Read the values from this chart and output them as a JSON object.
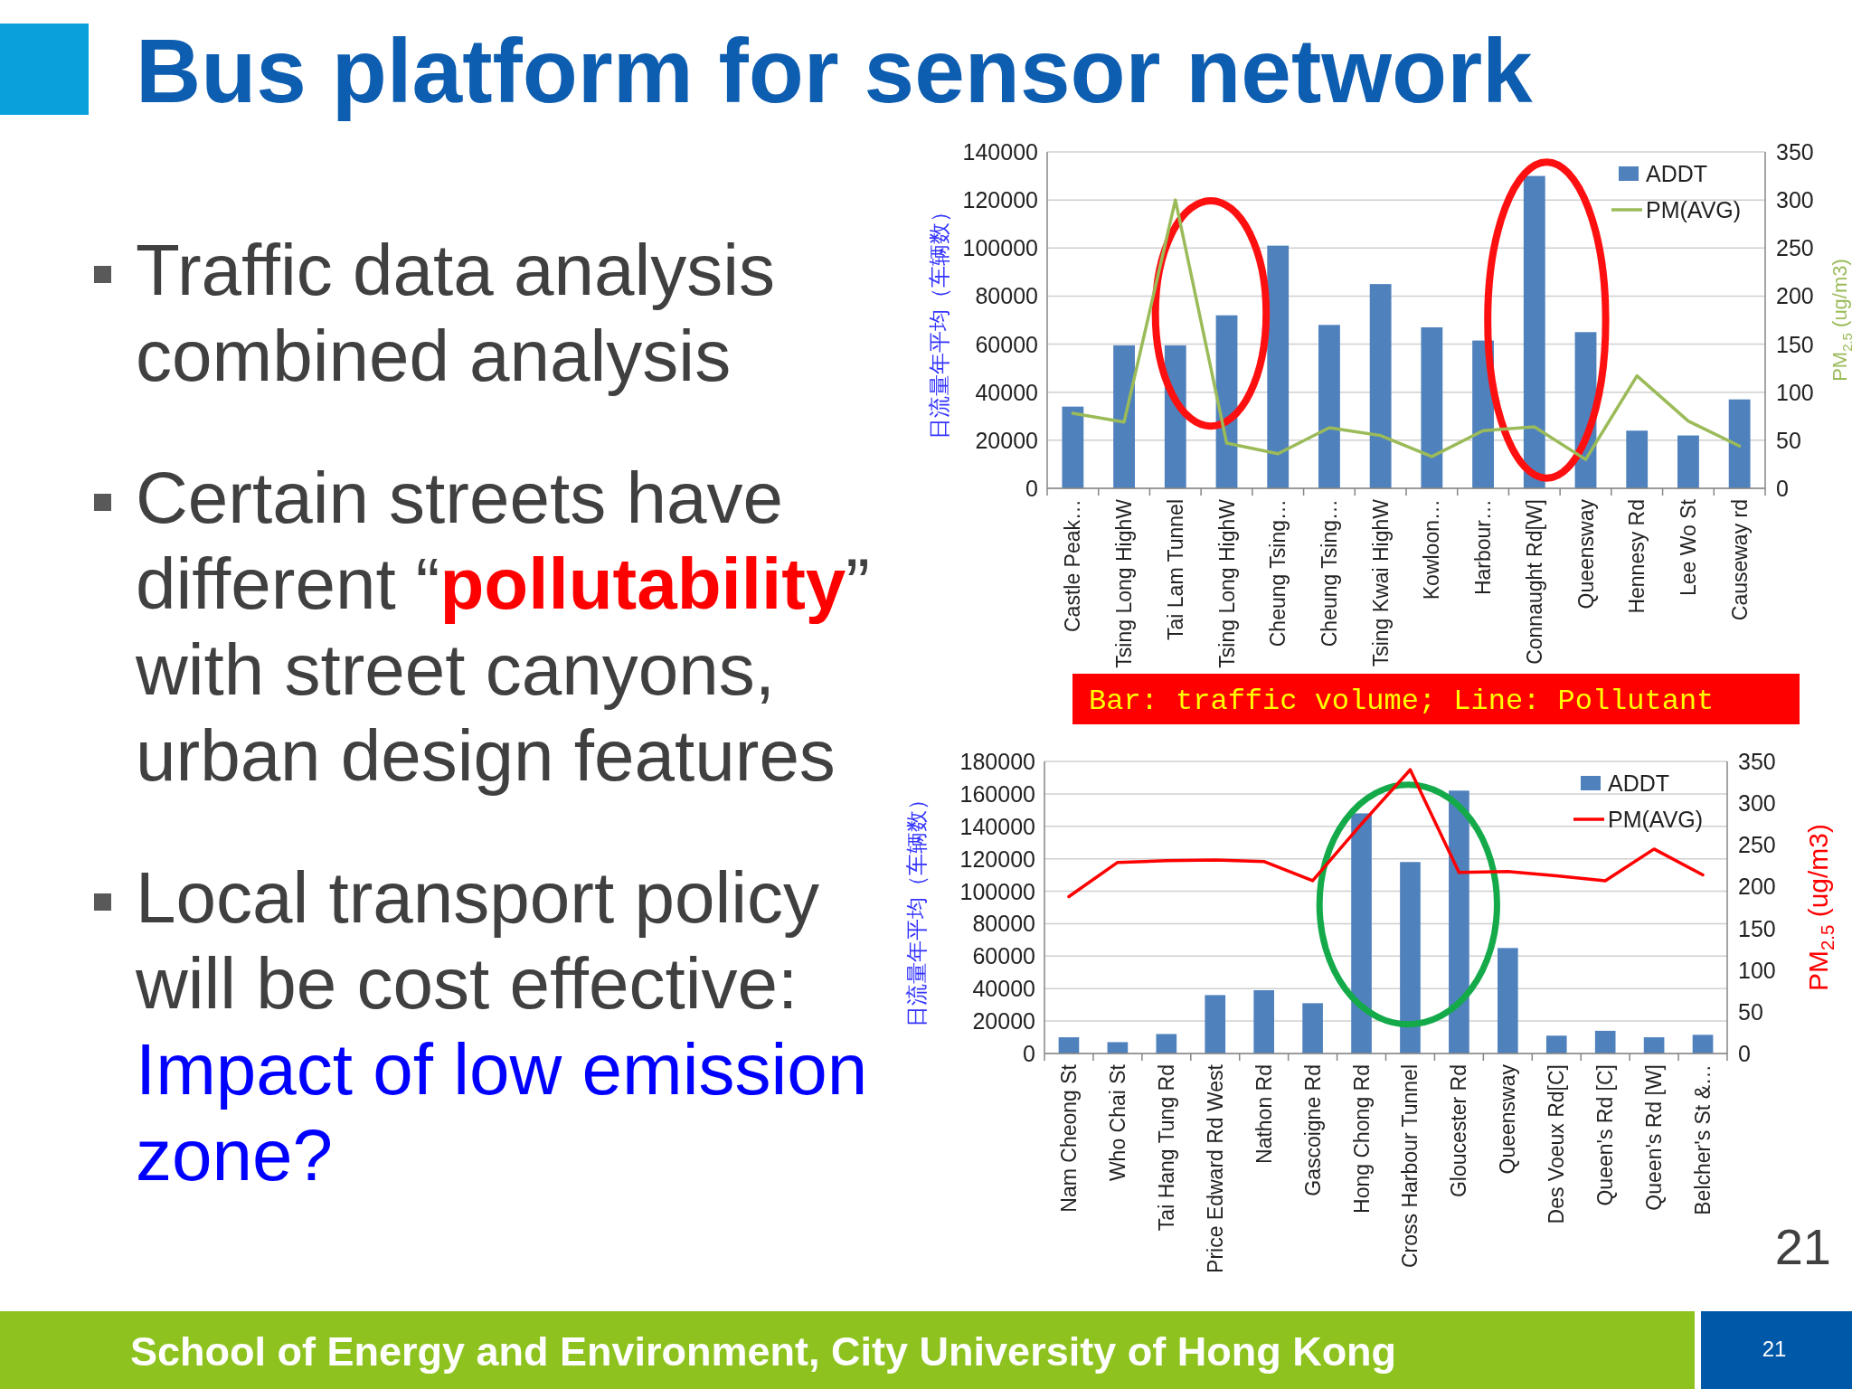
{
  "chart_data": [
    {
      "type": "bar",
      "title": "Bus platform for sensor network",
      "categories": [
        "Castle Peak…",
        "Tsing Long HighW",
        "Tai Lam Tunnel",
        "Tsing Long HighW",
        "Cheung Tsing…",
        "Cheung Tsing…",
        "Tsing Kwai HighW",
        "Kowloon…",
        "Harbour…",
        "Connaught Rd[W]",
        "Queensway",
        "Hennesy Rd",
        "Lee Wo St",
        "Causeway rd"
      ],
      "series": [
        {
          "name": "ADDT",
          "color": "#4f81bd",
          "values": [
            34000,
            59500,
            59500,
            72000,
            101000,
            68000,
            85000,
            67000,
            61500,
            130000,
            65000,
            24000,
            22000,
            37000
          ]
        },
        {
          "name": "PM(AVG)",
          "type": "line",
          "axis": "y2",
          "color": "#9bbb59",
          "values": [
            78,
            69,
            300,
            47,
            36,
            63,
            55,
            33,
            60,
            64,
            30,
            117,
            70,
            44
          ]
        }
      ],
      "ylabel": "日流量年平均（车辆数）",
      "y2label": "PM$_{2.5}$ (ug/m3)",
      "ylim": [
        0,
        140000
      ],
      "yticks": [
        0,
        20000,
        40000,
        60000,
        80000,
        100000,
        120000,
        140000
      ],
      "y2lim": [
        0,
        350
      ],
      "y2ticks": [
        0,
        50,
        100,
        150,
        200,
        250,
        300,
        350
      ],
      "grid": "y",
      "legend": "top right",
      "annotations": [
        "Traffic data analysis combined analysis",
        "Certain streets have different “pollutability” with street canyons, urban design features",
        "Local transport policy will be cost effective:",
        "Impact of low emission zone?",
        "Bar: traffic volume; Line: Pollutant"
      ]
    },
    {
      "type": "bar",
      "categories": [
        "Nam Cheong St",
        "Who Chai St",
        "Tai Hang Tung Rd",
        "Price Edward Rd West",
        "Nathon Rd",
        "Gascoigne Rd",
        "Hong Chong Rd",
        "Cross Harbour Tunnel",
        "Gloucester Rd",
        "Queensway",
        "Des Voeux Rd[C]",
        "Queen's Rd [C]",
        "Queen's Rd [W]",
        "Belcher's St &…"
      ],
      "series": [
        {
          "name": "ADDT",
          "color": "#4f81bd",
          "values": [
            10000,
            7000,
            12000,
            36000,
            39000,
            31000,
            148000,
            118000,
            162000,
            65000,
            11000,
            14000,
            10000,
            11500
          ]
        },
        {
          "name": "PM(AVG)",
          "type": "line",
          "axis": "y2",
          "color": "#ff0000",
          "values": [
            188,
            229,
            231,
            232,
            230,
            207,
            275,
            340,
            217,
            218,
            213,
            207,
            245,
            214
          ]
        }
      ],
      "ylabel": "日流量年平均（车辆数）",
      "y2label": "PM$_{2.5}$ (ug/m3)",
      "ylim": [
        0,
        180000
      ],
      "yticks": [
        0,
        20000,
        40000,
        60000,
        80000,
        100000,
        120000,
        140000,
        160000,
        180000
      ],
      "y2lim": [
        0,
        350
      ],
      "y2ticks": [
        0,
        50,
        100,
        150,
        200,
        250,
        300,
        350
      ],
      "grid": "y",
      "legend": "top right",
      "annotations": [
        "School of Energy and Environment, City University of Hong Kong",
        "21",
        "21"
      ]
    }
  ]
}
